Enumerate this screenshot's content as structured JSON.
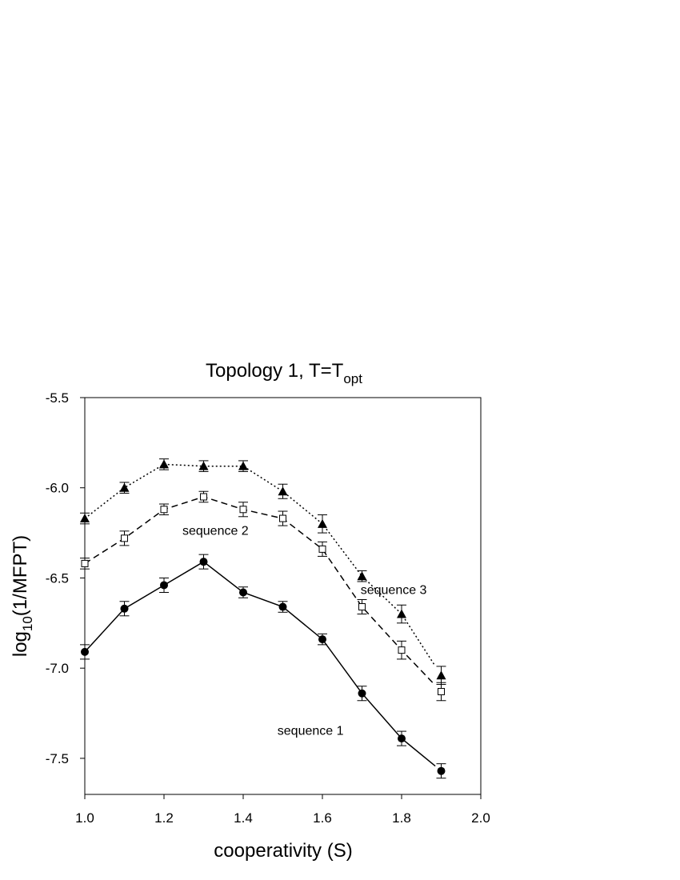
{
  "chart_data": {
    "type": "line",
    "title": "Topology 1, T=T",
    "title_subscript": "opt",
    "xlabel": "cooperativity (S)",
    "ylabel": "log",
    "ylabel_subscript": "10",
    "ylabel_suffix": "(1/MFPT)",
    "xlim": [
      1.0,
      2.0
    ],
    "ylim": [
      -7.7,
      -5.5
    ],
    "xticks": [
      1.0,
      1.2,
      1.4,
      1.6,
      1.8,
      2.0
    ],
    "xtick_labels": [
      "1.0",
      "1.2",
      "1.4",
      "1.6",
      "1.8",
      "2.0"
    ],
    "yticks": [
      -5.5,
      -6.0,
      -6.5,
      -7.0,
      -7.5
    ],
    "ytick_labels": [
      "-5.5",
      "-6.0",
      "-6.5",
      "-7.0",
      "-7.5"
    ],
    "grid": false,
    "legend": "none (series labeled inline)",
    "x": [
      1.0,
      1.1,
      1.2,
      1.3,
      1.4,
      1.5,
      1.6,
      1.7,
      1.8,
      1.9
    ],
    "series": [
      {
        "name": "sequence 1",
        "marker": "filled-circle",
        "line_style": "solid",
        "values": [
          -6.91,
          -6.67,
          -6.54,
          -6.41,
          -6.58,
          -6.66,
          -6.84,
          -7.14,
          -7.39,
          -7.57
        ],
        "errors": [
          0.04,
          0.04,
          0.04,
          0.04,
          0.03,
          0.03,
          0.03,
          0.04,
          0.04,
          0.04
        ]
      },
      {
        "name": "sequence 2",
        "marker": "open-square",
        "line_style": "dashed",
        "values": [
          -6.42,
          -6.28,
          -6.12,
          -6.05,
          -6.12,
          -6.17,
          -6.34,
          -6.66,
          -6.9,
          -7.13
        ],
        "errors": [
          0.03,
          0.04,
          0.03,
          0.03,
          0.04,
          0.04,
          0.04,
          0.04,
          0.05,
          0.05
        ]
      },
      {
        "name": "sequence 3",
        "marker": "filled-triangle",
        "line_style": "dotted",
        "values": [
          -6.17,
          -6.0,
          -5.87,
          -5.88,
          -5.88,
          -6.02,
          -6.2,
          -6.49,
          -6.7,
          -7.04
        ],
        "errors": [
          0.03,
          0.03,
          0.03,
          0.03,
          0.03,
          0.04,
          0.05,
          0.03,
          0.05,
          0.05
        ]
      }
    ],
    "line_end_x": 1.885,
    "annotations": [
      {
        "text": "sequence 2",
        "x": 1.33,
        "y": -6.26
      },
      {
        "text": "sequence 3",
        "x": 1.78,
        "y": -6.59
      },
      {
        "text": "sequence 1",
        "x": 1.57,
        "y": -7.37
      }
    ]
  }
}
